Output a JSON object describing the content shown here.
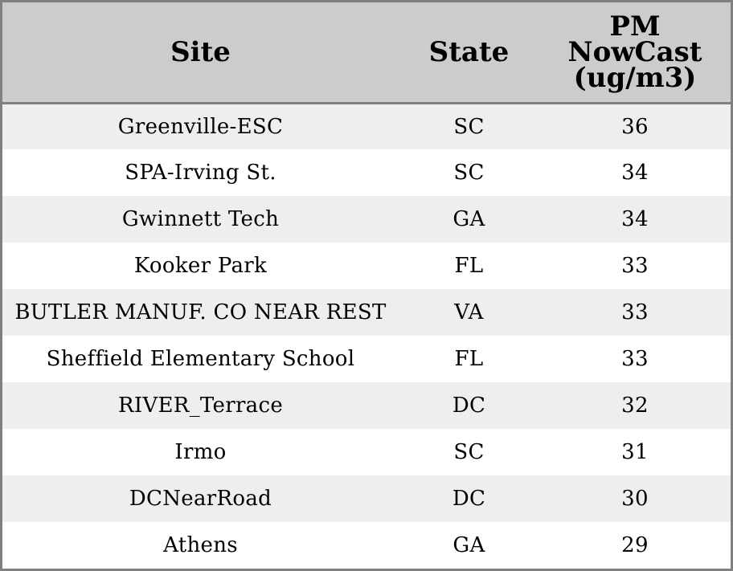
{
  "table": {
    "headers": {
      "site": "Site",
      "state": "State",
      "pm": "PM\nNowCast\n(ug/m3)"
    },
    "rows": [
      {
        "site": "Greenville-ESC",
        "state": "SC",
        "pm": "36"
      },
      {
        "site": "SPA-Irving St.",
        "state": "SC",
        "pm": "34"
      },
      {
        "site": "Gwinnett Tech",
        "state": "GA",
        "pm": "34"
      },
      {
        "site": "Kooker Park",
        "state": "FL",
        "pm": "33"
      },
      {
        "site": "BUTLER MANUF. CO NEAR REST",
        "state": "VA",
        "pm": "33"
      },
      {
        "site": "Sheffield Elementary School",
        "state": "FL",
        "pm": "33"
      },
      {
        "site": "RIVER_Terrace",
        "state": "DC",
        "pm": "32"
      },
      {
        "site": "Irmo",
        "state": "SC",
        "pm": "31"
      },
      {
        "site": "DCNearRoad",
        "state": "DC",
        "pm": "30"
      },
      {
        "site": "Athens",
        "state": "GA",
        "pm": "29"
      }
    ]
  },
  "colors": {
    "header_bg": "#cccccc",
    "row_stripe": "#eeeeee",
    "row_plain": "#ffffff",
    "border": "#808080"
  }
}
